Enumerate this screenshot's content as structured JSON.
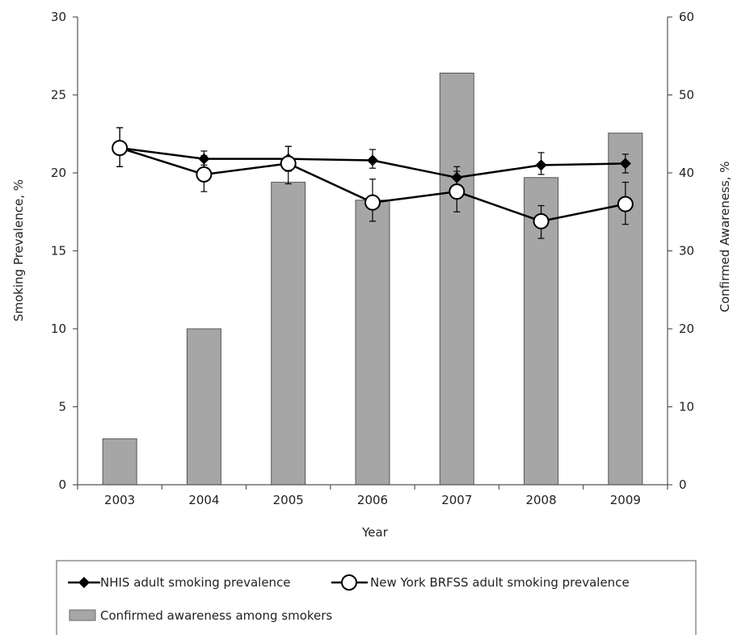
{
  "chart_data": {
    "type": "bar+line",
    "categories": [
      "2003",
      "2004",
      "2005",
      "2006",
      "2007",
      "2008",
      "2009"
    ],
    "xlabel": "Year",
    "ylabel_left": "Smoking Prevalence, %",
    "ylabel_right": "Confirmed Awareness, %",
    "ylim_left": [
      0,
      30
    ],
    "ylim_right": [
      0,
      60
    ],
    "yticks_left": [
      "0",
      "5",
      "10",
      "15",
      "20",
      "25",
      "30"
    ],
    "yticks_right": [
      "0",
      "10",
      "20",
      "30",
      "40",
      "50",
      "60"
    ],
    "bars": {
      "name": "Confirmed awareness among smokers",
      "axis": "right",
      "color": "#a6a6a6",
      "values": [
        5.9,
        20.0,
        38.8,
        36.5,
        52.8,
        39.4,
        45.1
      ]
    },
    "series": [
      {
        "name": "NHIS adult smoking prevalence",
        "axis": "left",
        "marker": "filled-diamond",
        "color": "#000000",
        "values": [
          21.6,
          20.9,
          20.9,
          20.8,
          19.7,
          20.5,
          20.6
        ],
        "err_low": [
          20.4,
          20.5,
          20.1,
          20.3,
          19.2,
          19.9,
          20.0
        ],
        "err_high": [
          22.9,
          21.4,
          21.7,
          21.5,
          20.4,
          21.3,
          21.2
        ]
      },
      {
        "name": "New York BRFSS adult smoking prevalence",
        "axis": "left",
        "marker": "open-circle",
        "color": "#000000",
        "values": [
          21.6,
          19.9,
          20.6,
          18.1,
          18.8,
          16.9,
          18.0
        ],
        "err_low": [
          20.4,
          18.8,
          19.3,
          16.9,
          17.5,
          15.8,
          16.7
        ],
        "err_high": [
          22.9,
          21.1,
          21.7,
          19.6,
          20.1,
          17.9,
          19.4
        ]
      }
    ],
    "legend": {
      "position": "bottom",
      "items": [
        "NHIS adult smoking prevalence",
        "New York BRFSS adult smoking prevalence",
        "Confirmed awareness among smokers"
      ]
    },
    "grid": false
  }
}
